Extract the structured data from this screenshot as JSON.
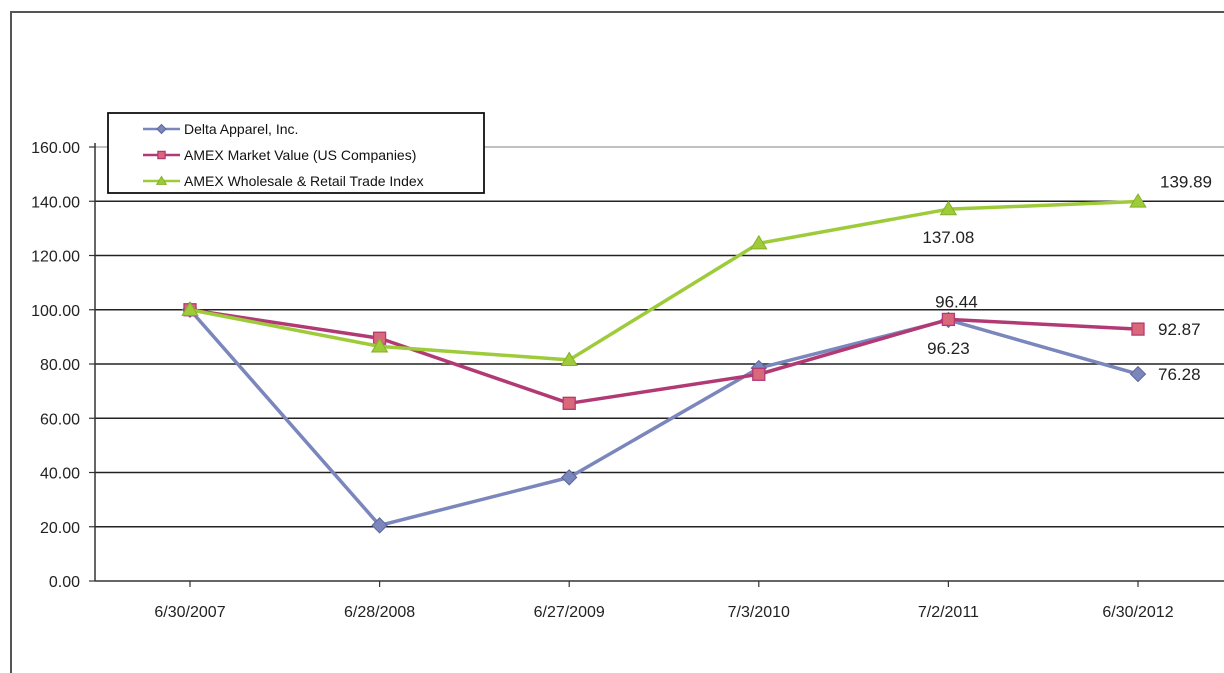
{
  "chart_data": {
    "type": "line",
    "categories": [
      "6/30/2007",
      "6/28/2008",
      "6/27/2009",
      "7/3/2010",
      "7/2/2011",
      "6/30/2012"
    ],
    "ylim": [
      0,
      160
    ],
    "yticks": [
      "0.00",
      "20.00",
      "40.00",
      "60.00",
      "80.00",
      "100.00",
      "120.00",
      "140.00",
      "160.00"
    ],
    "grid": true,
    "legend_position": "top-left",
    "series": [
      {
        "name": "Delta Apparel, Inc.",
        "color": "#7b86bd",
        "marker": "diamond",
        "values": [
          100,
          20.5,
          38.2,
          78.5,
          96.23,
          76.28
        ]
      },
      {
        "name": "AMEX Market Value (US Companies)",
        "color": "#b23a74",
        "marker": "square",
        "values": [
          100,
          89.5,
          65.5,
          76.2,
          96.44,
          92.87
        ]
      },
      {
        "name": "AMEX Wholesale & Retail Trade Index",
        "color": "#9ecb3a",
        "marker": "triangle",
        "values": [
          100,
          86.5,
          81.5,
          124.5,
          137.08,
          139.89
        ]
      }
    ],
    "annotations": [
      {
        "text": "139.89",
        "series": 2,
        "index": 5,
        "placement": "above-right"
      },
      {
        "text": "137.08",
        "series": 2,
        "index": 4,
        "placement": "below"
      },
      {
        "text": "96.44",
        "series": 1,
        "index": 4,
        "placement": "above"
      },
      {
        "text": "96.23",
        "series": 0,
        "index": 4,
        "placement": "below"
      },
      {
        "text": "92.87",
        "series": 1,
        "index": 5,
        "placement": "right"
      },
      {
        "text": "76.28",
        "series": 0,
        "index": 5,
        "placement": "right"
      }
    ]
  }
}
